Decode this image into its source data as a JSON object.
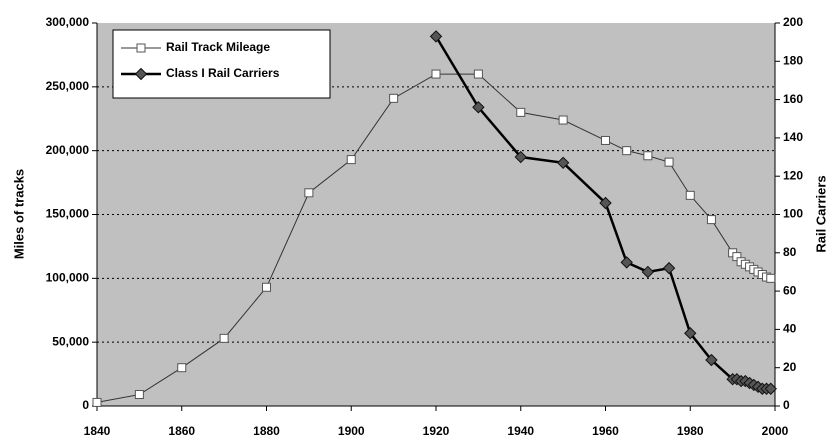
{
  "chart_data": {
    "type": "line",
    "ylabel": "Miles of tracks",
    "y2label": "Rail Carriers",
    "xlim": [
      1840,
      2000
    ],
    "xticks": [
      1840,
      1860,
      1880,
      1900,
      1920,
      1940,
      1960,
      1980,
      2000
    ],
    "ylim": [
      0,
      300000
    ],
    "yticks": [
      {
        "value": 0,
        "label": "0"
      },
      {
        "value": 50000,
        "label": "50,000"
      },
      {
        "value": 100000,
        "label": "100,000"
      },
      {
        "value": 150000,
        "label": "150,000"
      },
      {
        "value": 200000,
        "label": "200,000"
      },
      {
        "value": 250000,
        "label": "250,000"
      },
      {
        "value": 300000,
        "label": "300,000"
      }
    ],
    "y2lim": [
      0,
      200
    ],
    "y2ticks": [
      0,
      20,
      40,
      60,
      80,
      100,
      120,
      140,
      160,
      180,
      200
    ],
    "grid": true,
    "legend": "upper left",
    "series": [
      {
        "name": "Rail Track Mileage",
        "color": "#333333",
        "marker": "square",
        "x": [
          1840,
          1850,
          1860,
          1870,
          1880,
          1890,
          1900,
          1910,
          1920,
          1930,
          1940,
          1950,
          1960,
          1965,
          1970,
          1975,
          1980,
          1985,
          1990,
          1991,
          1992,
          1993,
          1994,
          1995,
          1996,
          1997,
          1998,
          1999
        ],
        "values": [
          2800,
          9000,
          30000,
          53000,
          93000,
          167000,
          193000,
          241000,
          260000,
          260000,
          230000,
          224000,
          208000,
          200000,
          196000,
          191000,
          165000,
          146000,
          120000,
          117000,
          113000,
          111000,
          109000,
          107000,
          105000,
          103000,
          101000,
          100000
        ]
      },
      {
        "name": "Class I Rail Carriers",
        "color": "#000000",
        "marker": "diamond",
        "axis": "y2",
        "x": [
          1920,
          1930,
          1940,
          1950,
          1960,
          1965,
          1970,
          1975,
          1980,
          1985,
          1990,
          1991,
          1992,
          1993,
          1994,
          1995,
          1996,
          1997,
          1998,
          1999
        ],
        "values": [
          193,
          156,
          130,
          127,
          106,
          75,
          70,
          72,
          38,
          24,
          14,
          14,
          13,
          13,
          12,
          11,
          10,
          9,
          9,
          9
        ]
      }
    ]
  }
}
